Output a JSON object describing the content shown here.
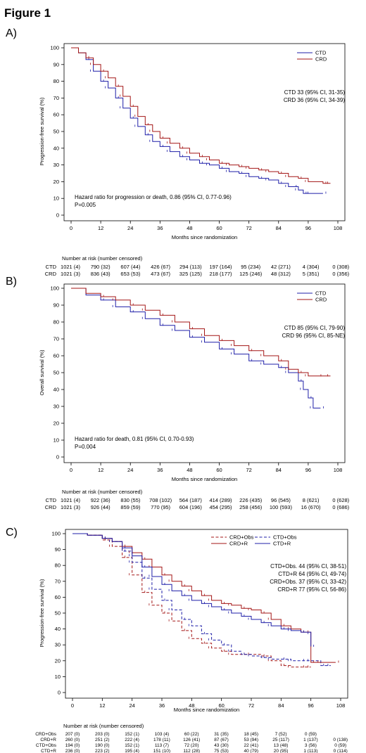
{
  "figure_title": "Figure 1",
  "colors": {
    "ctd": "#1f1fa8",
    "crd": "#a31515"
  },
  "chart_data": [
    {
      "panel_label": "A)",
      "type": "line",
      "ylabel": "Progression-free survival (%)",
      "xlabel": "Months since randomization",
      "xlim": [
        0,
        108
      ],
      "ylim": [
        0,
        100
      ],
      "xticks": [
        "0",
        "12",
        "24",
        "36",
        "48",
        "60",
        "72",
        "84",
        "96",
        "108"
      ],
      "yticks": [
        "0",
        "10",
        "20",
        "30",
        "40",
        "50",
        "60",
        "70",
        "80",
        "90",
        "100"
      ],
      "legend": [
        "CTD",
        "CRD"
      ],
      "annotation_right": [
        "CTD 33 (95% CI, 31-35)",
        "CRD 36 (95% CI, 34-39)"
      ],
      "annotation_left": [
        "Hazard ratio for progression or death, 0.86 (95% CI, 0.77-0.96)",
        "P=0.005"
      ],
      "series": [
        {
          "name": "CTD",
          "style": "solid",
          "x": [
            0,
            3,
            6,
            9,
            12,
            15,
            18,
            21,
            24,
            27,
            30,
            33,
            36,
            40,
            44,
            48,
            52,
            56,
            60,
            64,
            68,
            72,
            76,
            80,
            84,
            88,
            90,
            92,
            94,
            97,
            102
          ],
          "y": [
            100,
            97,
            93,
            86,
            80,
            76,
            70,
            64,
            58,
            53,
            48,
            44,
            41,
            38,
            35,
            33,
            31,
            30,
            28,
            26,
            25,
            23,
            22,
            21,
            19,
            17,
            17,
            15,
            13,
            13,
            13
          ]
        },
        {
          "name": "CRD",
          "style": "solid",
          "x": [
            0,
            3,
            6,
            9,
            12,
            15,
            18,
            21,
            24,
            27,
            30,
            33,
            36,
            40,
            44,
            48,
            52,
            56,
            60,
            64,
            68,
            72,
            76,
            80,
            84,
            88,
            92,
            96,
            102,
            105
          ],
          "y": [
            100,
            97,
            94,
            90,
            86,
            82,
            77,
            71,
            65,
            59,
            54,
            50,
            46,
            43,
            40,
            37,
            35,
            33,
            31,
            30,
            29,
            28,
            27,
            26,
            25,
            23,
            22,
            20,
            19,
            19
          ]
        }
      ],
      "risk_title": "Number at risk (number censored)",
      "risk_rows": [
        {
          "label": "CTD",
          "values": [
            "1021 (4)",
            "790 (32)",
            "607 (44)",
            "426 (67)",
            "294 (113)",
            "197 (164)",
            "95 (234)",
            "42 (271)",
            "4 (304)",
            "0 (308)"
          ]
        },
        {
          "label": "CRD",
          "values": [
            "1021 (3)",
            "836 (43)",
            "653 (53)",
            "473 (67)",
            "325 (125)",
            "218 (177)",
            "125 (246)",
            "48 (312)",
            "5 (351)",
            "0 (356)"
          ]
        }
      ]
    },
    {
      "panel_label": "B)",
      "type": "line",
      "ylabel": "Overall survival (%)",
      "xlabel": "Months since randomization",
      "xlim": [
        0,
        108
      ],
      "ylim": [
        0,
        100
      ],
      "xticks": [
        "0",
        "12",
        "24",
        "36",
        "48",
        "60",
        "72",
        "84",
        "96",
        "108"
      ],
      "yticks": [
        "0",
        "10",
        "20",
        "30",
        "40",
        "50",
        "60",
        "70",
        "80",
        "90",
        "100"
      ],
      "legend": [
        "CTD",
        "CRD"
      ],
      "annotation_right": [
        "CTD 85 (95% CI, 79-90)",
        "CRD 96 (95% CI, 85-NE)"
      ],
      "annotation_left": [
        "Hazard ratio for death, 0.81 (95% CI, 0.70-0.93)",
        "P=0.004"
      ],
      "series": [
        {
          "name": "CTD",
          "style": "solid",
          "x": [
            0,
            6,
            12,
            18,
            24,
            30,
            36,
            42,
            48,
            54,
            60,
            66,
            72,
            78,
            84,
            88,
            92,
            94,
            96,
            98,
            101
          ],
          "y": [
            100,
            96,
            93,
            89,
            86,
            82,
            78,
            75,
            71,
            68,
            64,
            61,
            57,
            55,
            53,
            50,
            45,
            40,
            35,
            29,
            29
          ]
        },
        {
          "name": "CRD",
          "style": "solid",
          "x": [
            0,
            6,
            12,
            18,
            24,
            30,
            36,
            42,
            48,
            54,
            60,
            66,
            72,
            78,
            84,
            88,
            92,
            96,
            100,
            105
          ],
          "y": [
            100,
            97,
            95,
            93,
            90,
            87,
            84,
            80,
            76,
            72,
            69,
            66,
            63,
            60,
            57,
            52,
            50,
            48,
            48,
            48
          ]
        }
      ],
      "risk_title": "Number at risk (number censored)",
      "risk_rows": [
        {
          "label": "CTD",
          "values": [
            "1021 (4)",
            "922 (36)",
            "830 (55)",
            "708 (102)",
            "564 (187)",
            "414 (289)",
            "226 (435)",
            "96 (545)",
            "8 (621)",
            "0 (628)"
          ]
        },
        {
          "label": "CRD",
          "values": [
            "1021 (3)",
            "926 (44)",
            "859 (59)",
            "770 (95)",
            "604 (196)",
            "454 (295)",
            "258 (456)",
            "100 (593)",
            "16 (670)",
            "0 (686)"
          ]
        }
      ]
    },
    {
      "panel_label": "C)",
      "type": "line",
      "ylabel": "Progression-free survival (%)",
      "xlabel": "Months since randomization",
      "xlim": [
        0,
        108
      ],
      "ylim": [
        0,
        100
      ],
      "xticks": [
        "0",
        "12",
        "24",
        "36",
        "48",
        "60",
        "72",
        "84",
        "96",
        "108"
      ],
      "yticks": [
        "0",
        "10",
        "20",
        "30",
        "40",
        "50",
        "60",
        "70",
        "80",
        "90",
        "100"
      ],
      "legend": [
        "CRD+Obs",
        "CTD+Obs",
        "CRD+R",
        "CTD+R"
      ],
      "annotation_right": [
        "CTD+Obs. 44 (95% CI, 38-51)",
        "CTD+R 64 (95% CI, 49-74)",
        "CRD+Obs. 37 (95% CI, 33-42)",
        "CRD+R 77 (95% CI, 56-86)"
      ],
      "series": [
        {
          "name": "CRD+Obs",
          "color": "crd",
          "style": "dashed",
          "x": [
            0,
            6,
            12,
            16,
            20,
            24,
            28,
            32,
            36,
            40,
            44,
            48,
            52,
            56,
            60,
            64,
            68,
            72,
            76,
            80,
            84,
            88,
            92,
            96
          ],
          "y": [
            100,
            99,
            96,
            92,
            85,
            74,
            63,
            55,
            50,
            45,
            39,
            34,
            31,
            28,
            26,
            24,
            24,
            24,
            23,
            20,
            17,
            16,
            16,
            16
          ]
        },
        {
          "name": "CTD+Obs",
          "color": "ctd",
          "style": "dashed",
          "x": [
            0,
            6,
            12,
            16,
            20,
            24,
            28,
            32,
            36,
            40,
            44,
            48,
            52,
            56,
            60,
            64,
            68,
            72,
            76,
            80,
            84,
            88,
            92,
            96,
            100,
            104
          ],
          "y": [
            100,
            99,
            97,
            95,
            89,
            82,
            72,
            65,
            58,
            52,
            46,
            42,
            37,
            33,
            30,
            26,
            24,
            23,
            22,
            21,
            21,
            20,
            20,
            20,
            17,
            17
          ]
        },
        {
          "name": "CRD+R",
          "color": "crd",
          "style": "solid",
          "x": [
            0,
            6,
            12,
            16,
            20,
            24,
            28,
            32,
            36,
            40,
            44,
            48,
            52,
            56,
            60,
            64,
            68,
            72,
            76,
            80,
            84,
            88,
            92,
            96,
            96,
            100,
            106
          ],
          "y": [
            100,
            99,
            97,
            95,
            92,
            88,
            84,
            79,
            74,
            70,
            67,
            64,
            61,
            58,
            56,
            55,
            53,
            52,
            50,
            46,
            42,
            40,
            38,
            38,
            19,
            19,
            19
          ]
        },
        {
          "name": "CTD+R",
          "color": "ctd",
          "style": "solid",
          "x": [
            0,
            6,
            12,
            16,
            20,
            24,
            28,
            32,
            36,
            40,
            44,
            48,
            52,
            56,
            60,
            64,
            68,
            72,
            76,
            80,
            84,
            88,
            92,
            96,
            96
          ],
          "y": [
            100,
            99,
            97,
            95,
            91,
            86,
            79,
            73,
            68,
            64,
            61,
            58,
            56,
            54,
            52,
            50,
            48,
            46,
            44,
            42,
            40,
            39,
            38,
            37,
            29
          ]
        }
      ],
      "risk_title": "Number at risk (number censored)",
      "risk_rows": [
        {
          "label": "CRD+Obs",
          "values": [
            "207 (0)",
            "203 (0)",
            "152 (1)",
            "103 (4)",
            "60 (22)",
            "31 (35)",
            "18 (45)",
            "7 (52)",
            "0 (59)",
            ""
          ]
        },
        {
          "label": "CRD+R",
          "values": [
            "260 (0)",
            "251 (2)",
            "222 (4)",
            "178 (11)",
            "126 (41)",
            "87 (67)",
            "53 (94)",
            "25 (117)",
            "1 (137)",
            "0 (138)"
          ]
        },
        {
          "label": "CTD+Obs",
          "values": [
            "194 (0)",
            "190 (0)",
            "152 (1)",
            "113 (7)",
            "72 (20)",
            "43 (30)",
            "22 (41)",
            "13 (48)",
            "3 (56)",
            "0 (59)"
          ]
        },
        {
          "label": "CTD+R",
          "values": [
            "236 (0)",
            "223 (2)",
            "195 (4)",
            "151 (10)",
            "112 (28)",
            "75 (53)",
            "40 (79)",
            "20 (95)",
            "1 (113)",
            "0 (114)"
          ]
        }
      ]
    }
  ]
}
